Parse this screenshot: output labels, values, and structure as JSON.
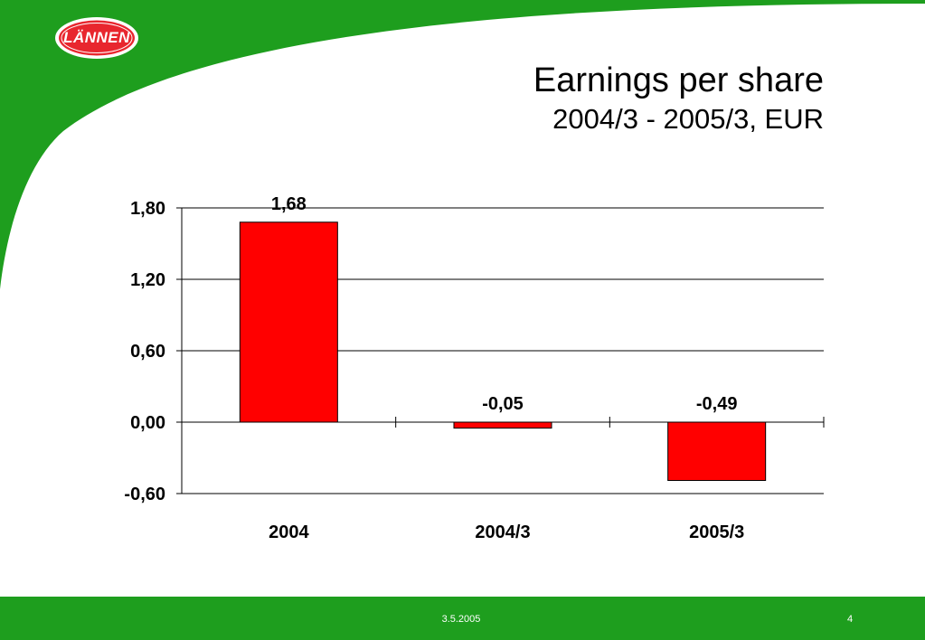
{
  "brand": {
    "logo_text": "LÄNNEN",
    "green": "#1e9e1e",
    "logo_red": "#e8262e"
  },
  "chart_data": {
    "type": "bar",
    "title": "Earnings per share",
    "subtitle": "2004/3 - 2005/3, EUR",
    "categories": [
      "2004",
      "2004/3",
      "2005/3"
    ],
    "values": [
      1.68,
      -0.05,
      -0.49
    ],
    "data_labels": [
      "1,68",
      "-0,05",
      "-0,49"
    ],
    "ylim": [
      -0.6,
      1.8
    ],
    "yticks": [
      -0.6,
      0.0,
      0.6,
      1.2,
      1.8
    ],
    "ytick_labels": [
      "-0,60",
      "0,00",
      "0,60",
      "1,20",
      "1,80"
    ],
    "xlabel": "",
    "ylabel": "",
    "grid": true,
    "bar_color": "#ff0000"
  },
  "footer": {
    "date": "3.5.2005",
    "page": "4"
  }
}
